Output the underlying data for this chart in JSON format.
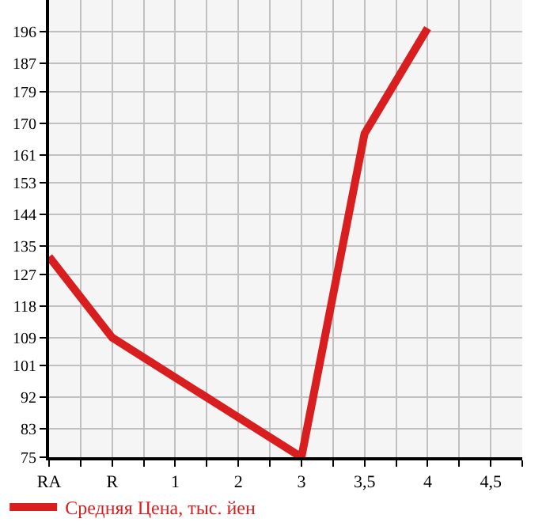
{
  "chart_data": {
    "type": "line",
    "categories": [
      "RA",
      "R",
      "1",
      "2",
      "3",
      "3,5",
      "4",
      "4,5"
    ],
    "series": [
      {
        "name": "Средняя Цена, тыс. йен",
        "color": "#d81e1e",
        "values": [
          132,
          109,
          null,
          null,
          75,
          167,
          197,
          null
        ]
      }
    ],
    "ylim": [
      75,
      205
    ],
    "yticks": [
      75,
      83,
      92,
      101,
      109,
      118,
      127,
      135,
      144,
      153,
      161,
      170,
      179,
      187,
      196
    ],
    "grid": true,
    "legend": "bottom",
    "marker": "none",
    "line_style": "solid"
  }
}
